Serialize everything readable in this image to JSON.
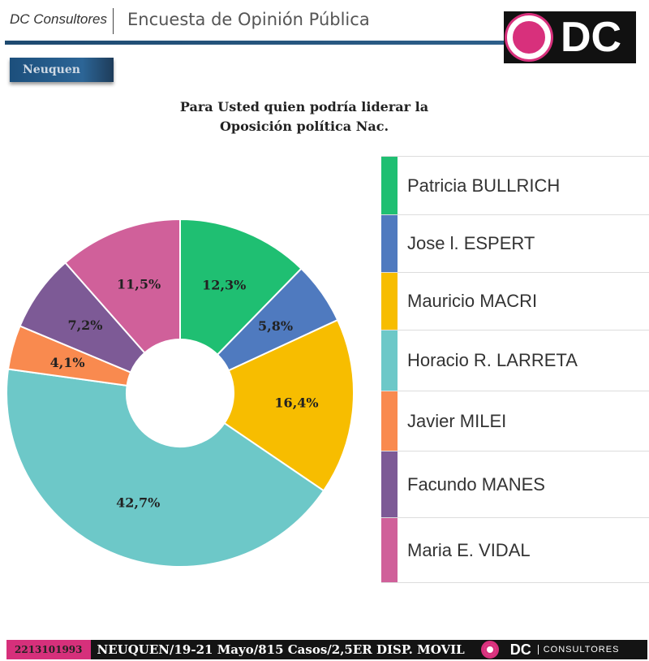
{
  "header": {
    "brand": "DC Consultores",
    "title": "Encuesta de Opinión Pública",
    "logo_text": "DC"
  },
  "region": "Neuquen",
  "chart_data": {
    "type": "pie",
    "title": "Para Usted quien podría liderar la Oposición política Nac.",
    "title_lines": [
      "Para Usted quien podría liderar la",
      "Oposición política Nac."
    ],
    "legend_position": "right",
    "slices": [
      {
        "name": "Patricia BULLRICH",
        "value": 12.3,
        "label": "12,3%",
        "color": "#1fbf72"
      },
      {
        "name": "Jose l. ESPERT",
        "value": 5.8,
        "label": "5,8%",
        "color": "#4f7abf"
      },
      {
        "name": "Mauricio MACRI",
        "value": 16.4,
        "label": "16,4%",
        "color": "#f7bd00"
      },
      {
        "name": "Horacio R. LARRETA",
        "value": 42.7,
        "label": "42,7%",
        "color": "#6dc8c8"
      },
      {
        "name": "Javier MILEI",
        "value": 4.1,
        "label": "4,1%",
        "color": "#f98a4f"
      },
      {
        "name": "Facundo MANES",
        "value": 7.2,
        "label": "7,2%",
        "color": "#7d5a96"
      },
      {
        "name": "Maria E. VIDAL",
        "value": 11.5,
        "label": "11,5%",
        "color": "#d0609a"
      }
    ]
  },
  "footer": {
    "phone": "2213101993",
    "info": "NEUQUEN/19-21 Mayo/815 Casos/2,5ER DISP. MOVIL",
    "dc": "DC",
    "consultores": "CONSULTORES"
  }
}
